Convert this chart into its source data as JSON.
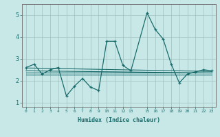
{
  "xlabel": "Humidex (Indice chaleur)",
  "bg_color": "#c8e8e8",
  "grid_color": "#9fbfbf",
  "line_color": "#1a6b6b",
  "x_ticks": [
    0,
    1,
    2,
    3,
    4,
    5,
    6,
    7,
    8,
    9,
    10,
    11,
    12,
    13,
    15,
    16,
    17,
    18,
    19,
    20,
    21,
    22,
    23
  ],
  "ylim": [
    0.8,
    5.5
  ],
  "xlim": [
    -0.5,
    23.5
  ],
  "main_line_x": [
    0,
    1,
    2,
    3,
    4,
    5,
    6,
    7,
    8,
    9,
    10,
    11,
    12,
    13,
    15,
    16,
    17,
    18,
    19,
    20,
    21,
    22,
    23
  ],
  "main_line_y": [
    2.6,
    2.75,
    2.3,
    2.5,
    2.6,
    1.3,
    1.75,
    2.1,
    1.7,
    1.55,
    3.8,
    3.8,
    2.7,
    2.45,
    5.1,
    4.35,
    3.9,
    2.75,
    1.9,
    2.3,
    2.4,
    2.5,
    2.45
  ],
  "trend1_x": [
    0,
    23
  ],
  "trend1_y": [
    2.58,
    2.42
  ],
  "trend2_x": [
    0,
    23
  ],
  "trend2_y": [
    2.28,
    2.28
  ],
  "trend3_x": [
    0,
    23
  ],
  "trend3_y": [
    2.45,
    2.35
  ],
  "trend4_x": [
    0,
    23
  ],
  "trend4_y": [
    2.38,
    2.38
  ]
}
